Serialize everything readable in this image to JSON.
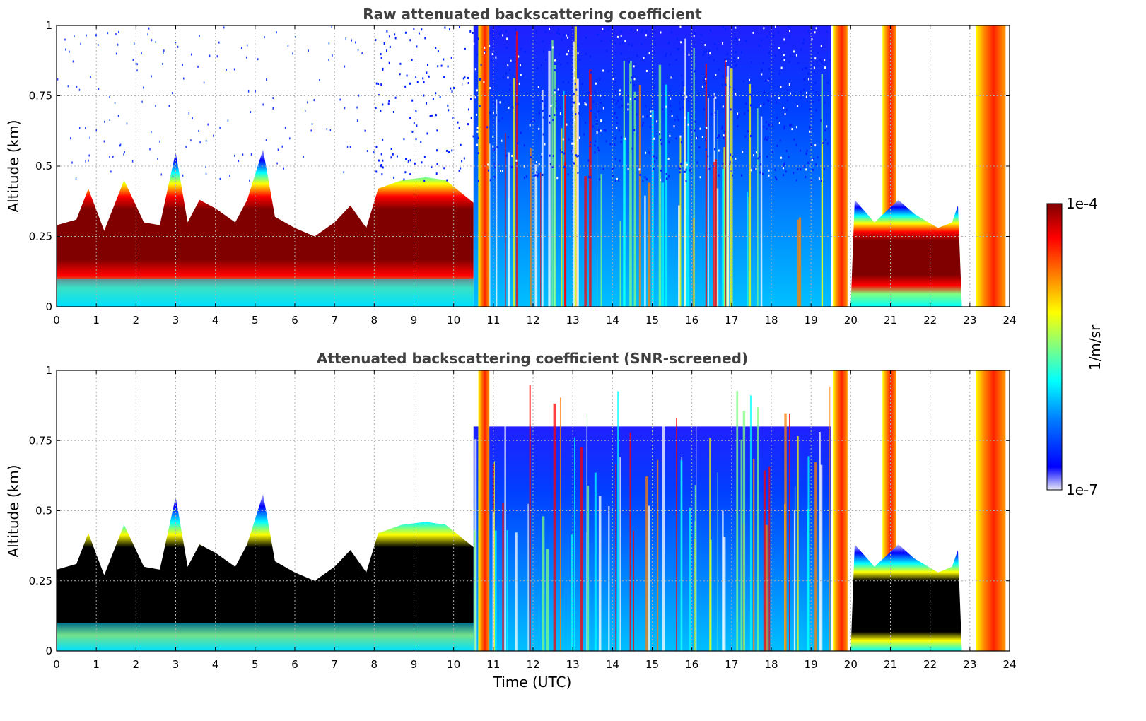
{
  "chart_data": [
    {
      "type": "heatmap",
      "title": "Raw attenuated backscattering coefficient",
      "xlabel": "",
      "ylabel": "Altitude (km)",
      "xlim": [
        0,
        24
      ],
      "ylim": [
        0,
        1
      ],
      "x_ticks": [
        "0",
        "1",
        "2",
        "3",
        "4",
        "5",
        "6",
        "7",
        "8",
        "9",
        "10",
        "11",
        "12",
        "13",
        "14",
        "15",
        "16",
        "17",
        "18",
        "19",
        "20",
        "21",
        "22",
        "23",
        "24"
      ],
      "y_ticks": [
        "0",
        "0.25",
        "0.5",
        "0.75",
        "1"
      ],
      "grid": true,
      "layer_top_km": [
        [
          0,
          0.29
        ],
        [
          0.5,
          0.31
        ],
        [
          0.8,
          0.42
        ],
        [
          1.2,
          0.27
        ],
        [
          1.7,
          0.45
        ],
        [
          2.2,
          0.3
        ],
        [
          2.6,
          0.29
        ],
        [
          3.0,
          0.55
        ],
        [
          3.3,
          0.3
        ],
        [
          3.6,
          0.38
        ],
        [
          4.0,
          0.35
        ],
        [
          4.5,
          0.3
        ],
        [
          4.8,
          0.38
        ],
        [
          5.2,
          0.56
        ],
        [
          5.5,
          0.32
        ],
        [
          6.0,
          0.28
        ],
        [
          6.5,
          0.25
        ],
        [
          7.0,
          0.3
        ],
        [
          7.4,
          0.36
        ],
        [
          7.8,
          0.28
        ],
        [
          8.1,
          0.42
        ],
        [
          8.7,
          0.45
        ],
        [
          9.3,
          0.46
        ],
        [
          9.8,
          0.45
        ],
        [
          10.5,
          0.37
        ]
      ]
    },
    {
      "type": "heatmap",
      "title": "Attenuated backscattering coefficient (SNR-screened)",
      "xlabel": "Time (UTC)",
      "ylabel": "Altitude (km)",
      "xlim": [
        0,
        24
      ],
      "ylim": [
        0,
        1
      ],
      "x_ticks": [
        "0",
        "1",
        "2",
        "3",
        "4",
        "5",
        "6",
        "7",
        "8",
        "9",
        "10",
        "11",
        "12",
        "13",
        "14",
        "15",
        "16",
        "17",
        "18",
        "19",
        "20",
        "21",
        "22",
        "23",
        "24"
      ],
      "y_ticks": [
        "0",
        "0.25",
        "0.5",
        "0.75",
        "1"
      ],
      "grid": true,
      "screened_color": "#000000"
    }
  ],
  "colorbar": {
    "label": "1/m/sr",
    "max_label": "1e-4",
    "min_label": "1e-7",
    "scale": "log",
    "colors": [
      "#e8e8f8",
      "#0000ff",
      "#0080ff",
      "#00ffff",
      "#80ff80",
      "#ffff00",
      "#ff8000",
      "#ff0000",
      "#800000"
    ]
  }
}
